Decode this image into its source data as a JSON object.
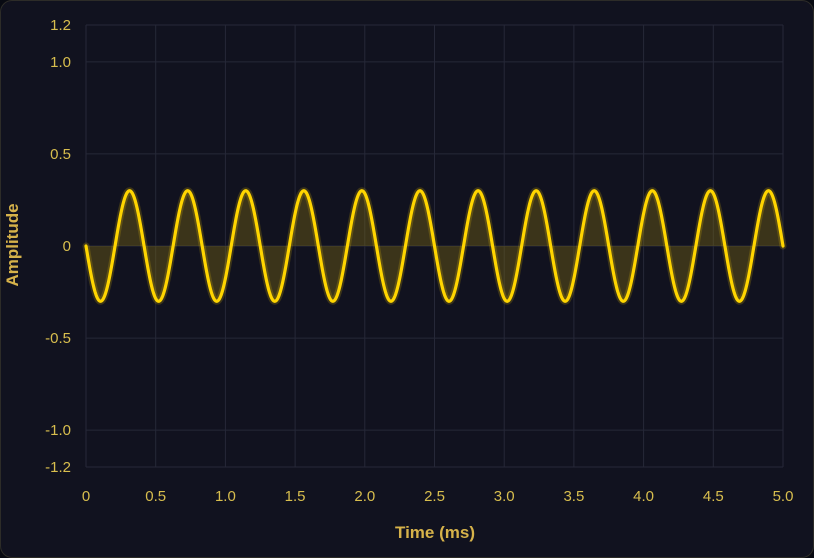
{
  "chart_data": {
    "type": "line",
    "title": "",
    "xlabel": "Time (ms)",
    "ylabel": "Amplitude",
    "xlim": [
      0,
      5.0
    ],
    "ylim": [
      -1.2,
      1.2
    ],
    "x_ticks": [
      "0",
      "0.5",
      "1.0",
      "1.5",
      "2.0",
      "2.5",
      "3.0",
      "3.5",
      "4.0",
      "4.5",
      "5.0"
    ],
    "y_ticks": [
      "1.2",
      "1.0",
      "0.5",
      "0",
      "-0.5",
      "-1.0",
      "-1.2"
    ],
    "grid": true,
    "legend": "none",
    "series": [
      {
        "function": "y = -0.3 * sin(2 * pi * 2.4 * t)",
        "amplitude": 0.3,
        "frequency_khz": 2.4,
        "x_start": 0,
        "x_end": 5.0,
        "fill_to_zero": true,
        "color": "#ffd500"
      }
    ],
    "colors": {
      "background": "#11121f",
      "grid": "#262838",
      "line": "#ffd500",
      "fill": "#8a7510",
      "text": "#d8be4e"
    }
  }
}
